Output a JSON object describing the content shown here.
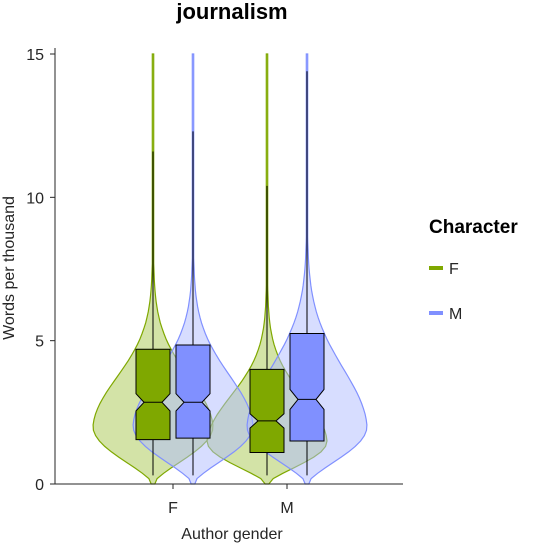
{
  "chart_data": {
    "type": "violin",
    "title": "journalism",
    "xlabel": "Author gender",
    "ylabel": "Words per thousand",
    "categories": [
      "F",
      "M"
    ],
    "ylim": [
      0,
      15
    ],
    "yticks": [
      0,
      5,
      10,
      15
    ],
    "grid": false,
    "legend": {
      "title": "Character",
      "placement": "right",
      "entries": [
        {
          "label": "F",
          "color": "#7fa800"
        },
        {
          "label": "M",
          "color": "#8090ff"
        }
      ]
    },
    "series": [
      {
        "name": "F",
        "color": "#7fa800",
        "fill_color": "#a8c850",
        "groups": [
          {
            "category": "F",
            "whisker_low": 0.3,
            "q1": 1.55,
            "median": 2.85,
            "q3": 4.7,
            "whisker_high": 11.6,
            "notch": [
              2.55,
              3.15
            ],
            "violin_max": 15
          },
          {
            "category": "M",
            "whisker_low": 0.3,
            "q1": 1.1,
            "median": 2.2,
            "q3": 4.0,
            "whisker_high": 10.4,
            "notch": [
              1.95,
              2.45
            ],
            "violin_max": 15
          }
        ]
      },
      {
        "name": "M",
        "color": "#8090ff",
        "fill_color": "#b0bcff",
        "groups": [
          {
            "category": "F",
            "whisker_low": 0.3,
            "q1": 1.6,
            "median": 2.85,
            "q3": 4.85,
            "whisker_high": 12.3,
            "notch": [
              2.55,
              3.15
            ],
            "violin_max": 15
          },
          {
            "category": "M",
            "whisker_low": 0.3,
            "q1": 1.5,
            "median": 2.95,
            "q3": 5.25,
            "whisker_high": 14.4,
            "notch": [
              2.6,
              3.3
            ],
            "violin_max": 15
          }
        ]
      }
    ]
  }
}
